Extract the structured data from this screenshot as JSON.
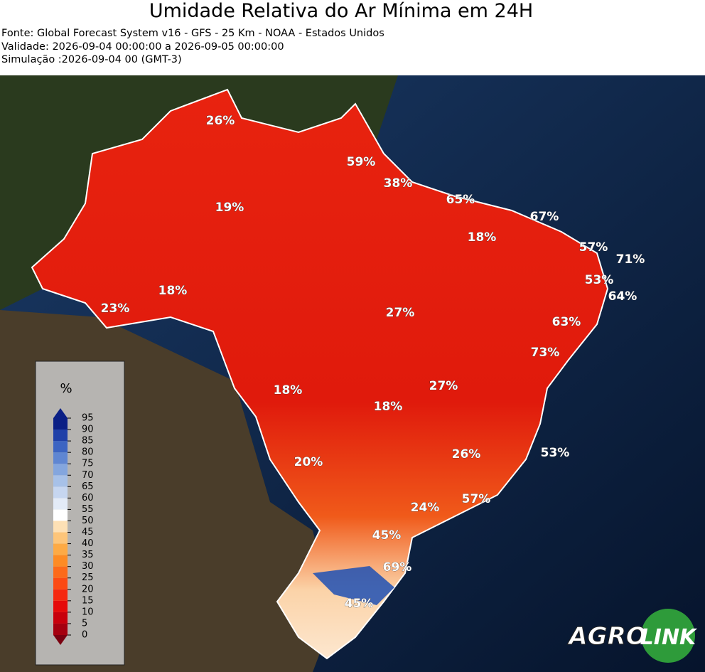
{
  "header": {
    "title": "Umidade Relativa do Ar Mínima em 24H",
    "lines": [
      "Fonte: Global Forecast System v16 - GFS - 25 Km - NOAA - Estados Unidos",
      "Validade: 2026-09-04 00:00:00 a 2026-09-05 00:00:00",
      "Simulação :2026-09-04 00 (GMT-3)"
    ]
  },
  "map_labels": [
    "26%",
    "59%",
    "38%",
    "65%",
    "19%",
    "67%",
    "18%",
    "57%",
    "71%",
    "53%",
    "18%",
    "64%",
    "23%",
    "27%",
    "63%",
    "73%",
    "27%",
    "18%",
    "18%",
    "26%",
    "53%",
    "20%",
    "57%",
    "24%",
    "45%",
    "69%",
    "45%"
  ],
  "colorbar": {
    "unit": "%",
    "ticks": [
      0,
      5,
      10,
      15,
      20,
      25,
      30,
      35,
      40,
      45,
      50,
      55,
      60,
      65,
      70,
      75,
      80,
      85,
      90,
      95
    ]
  },
  "logo": {
    "agro": "AGRO",
    "link": "LINK"
  }
}
